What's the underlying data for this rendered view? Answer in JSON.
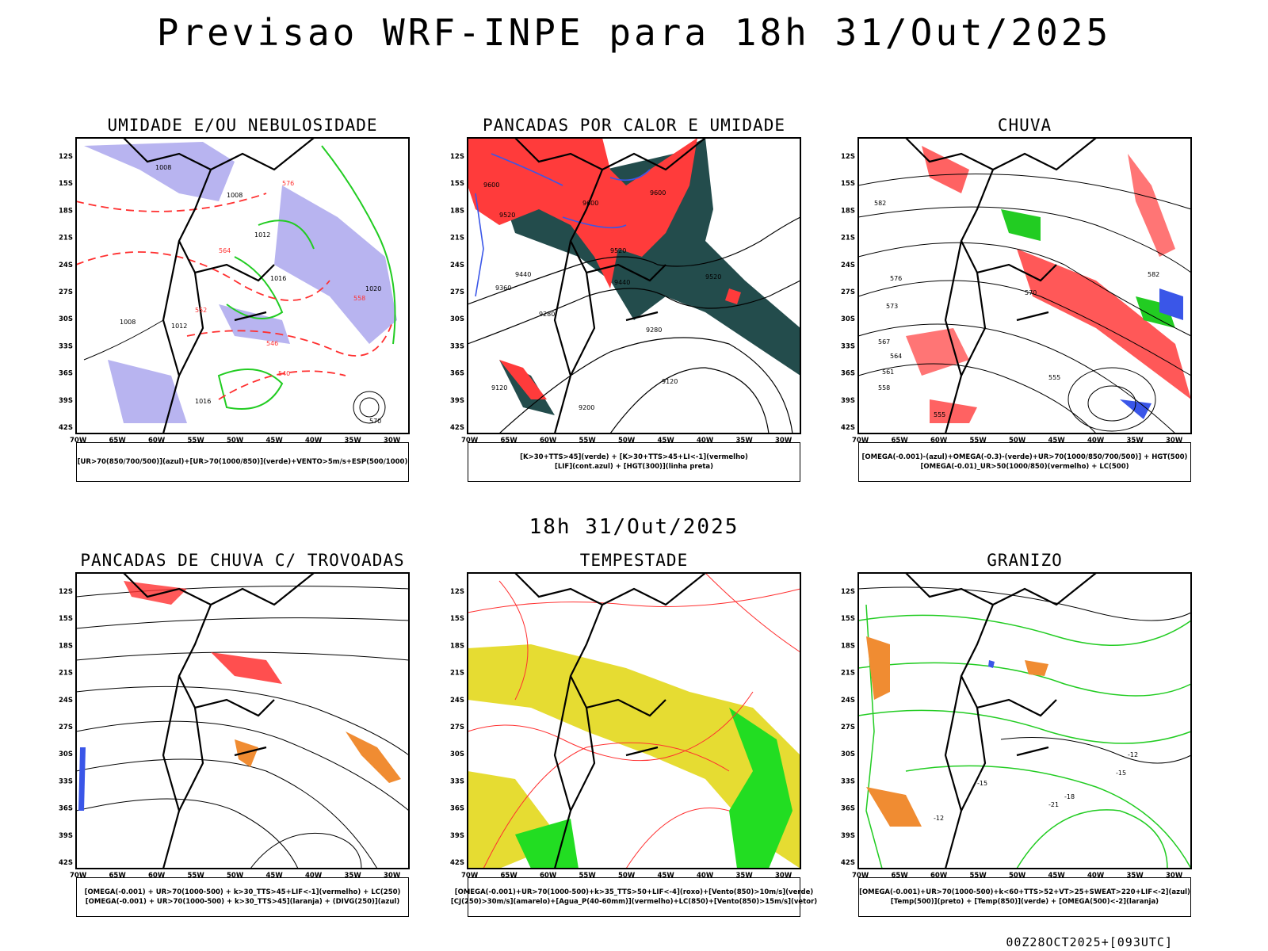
{
  "header": {
    "title": "Previsao WRF-INPE  para 18h 31/Out/2025"
  },
  "mid_date": "18h 31/Out/2025",
  "footer": "00Z28OCT2025+[093UTC]",
  "axes": {
    "lat_labels": [
      "12S",
      "15S",
      "18S",
      "21S",
      "24S",
      "27S",
      "30S",
      "33S",
      "36S",
      "39S",
      "42S"
    ],
    "lon_labels": [
      "70W",
      "65W",
      "60W",
      "55W",
      "50W",
      "45W",
      "40W",
      "35W",
      "30W"
    ]
  },
  "panels": [
    {
      "title": "UMIDADE E/OU NEBULOSIDADE",
      "legend": [
        "[UR>70(850/700/500)](azul)+[UR>70(1000/850)](verde)+VENTO>5m/s+ESP(500/1000)"
      ],
      "contour_labels": [
        "1008",
        "1008",
        "1012",
        "1016",
        "1020",
        "1008",
        "1012",
        "1016",
        "570",
        "576",
        "564",
        "558",
        "552",
        "546",
        "540"
      ]
    },
    {
      "title": "PANCADAS POR CALOR E UMIDADE",
      "legend": [
        "[K>30+TTS>45](verde)  +  [K>30+TTS>45+LI<-1](vermelho)",
        "[LIF](cont.azul)  +  [HGT(300)](linha preta)"
      ],
      "contour_labels": [
        "9600",
        "9520",
        "9600",
        "9600",
        "9520",
        "9440",
        "9440",
        "9360",
        "9280",
        "9280",
        "9200",
        "9120",
        "9120",
        "9520"
      ]
    },
    {
      "title": "CHUVA",
      "legend": [
        "[OMEGA(-0.001)-(azul)+OMEGA(-0.3)-(verde)+UR>70(1000/850/700/500)]  +  HGT(500)",
        "[OMEGA(-0.01)_UR>50(1000/850)(vermelho)  +  LC(500)"
      ],
      "contour_labels": [
        "582",
        "576",
        "573",
        "567",
        "564",
        "561",
        "558",
        "555",
        "582",
        "555",
        "570"
      ]
    },
    {
      "title": "PANCADAS DE CHUVA C/ TROVOADAS",
      "legend": [
        "[OMEGA(-0.001)  +  UR>70(1000-500)  +  k>30_TTS>45+LIF<-1](vermelho)  +  LC(250)",
        "[OMEGA(-0.001)  +  UR>70(1000-500)  +  k>30_TTS>45](laranja)  +  (DIVG(250)](azul)"
      ],
      "contour_labels": []
    },
    {
      "title": "TEMPESTADE",
      "legend": [
        "[OMEGA(-0.001)+UR>70(1000-500)+k>35_TTS>50+LIF<-4](roxo)+[Vento(850)>10m/s](verde)",
        "[CJ(250)>30m/s](amarelo)+[Agua_P(40-60mm)](vermelho)+LC(850)+[Vento(850)>15m/s](vetor)"
      ],
      "contour_labels": []
    },
    {
      "title": "GRANIZO",
      "legend": [
        "[OMEGA(-0.001)+UR>70(1000-500)+k<60+TTS>52+VT>25+SWEAT>220+LIF<-2](azul)",
        "[Temp(500)](preto)  +  [Temp(850)](verde)  +  [OMEGA(500)<-2](laranja)"
      ],
      "contour_labels": [
        "-12",
        "-15",
        "-18",
        "-21",
        "-15",
        "-12"
      ]
    }
  ],
  "colors": {
    "frame": "#000000",
    "humid_blue": "#b8b4f0",
    "humid_green": "#22cc22",
    "wind_red": "#ff3030",
    "dark_green": "#234c4c",
    "red_fill": "#ff3b3b",
    "blue_line": "#3a56e8",
    "yellow": "#e6dc32",
    "orange": "#f08c32",
    "lime": "#22dd22"
  }
}
